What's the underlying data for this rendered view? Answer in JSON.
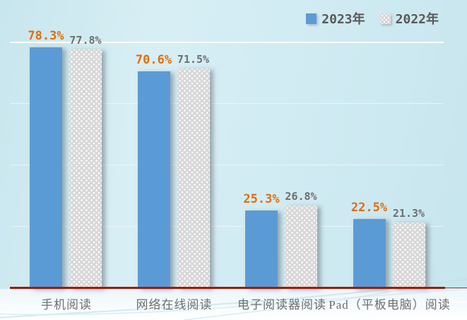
{
  "legend": {
    "items": [
      {
        "label": "2023年",
        "swatch": "solid-blue-square"
      },
      {
        "label": "2022年",
        "swatch": "white-polka-dot-square"
      }
    ]
  },
  "colors": {
    "background_top": "#cfeaf2",
    "background_bottom": "#f7fcfe",
    "series_2023": "#5b9bd5",
    "series_2022": "#d8d8d8",
    "value_label_2023": "#e36c0a",
    "value_label_2022": "#6f6f6f",
    "category_label": "#6e6e6e",
    "legend_text": "#595959",
    "axis_line": "#a81605",
    "gridline": "#ffffff"
  },
  "chart_data": {
    "type": "bar",
    "title": "",
    "categories": [
      "手机阅读",
      "网络在线阅读",
      "电子阅读器阅读",
      "Pad（平板电脑）阅读"
    ],
    "series": [
      {
        "name": "2023年",
        "values": [
          78.3,
          70.6,
          25.3,
          22.5
        ],
        "labels": [
          "78.3%",
          "70.6%",
          "25.3%",
          "22.5%"
        ],
        "color": "#5b9bd5",
        "label_color": "#e36c0a",
        "pattern": "solid"
      },
      {
        "name": "2022年",
        "values": [
          77.8,
          71.5,
          26.8,
          21.3
        ],
        "labels": [
          "77.8%",
          "71.5%",
          "26.8%",
          "21.3%"
        ],
        "color": "#d8d8d8",
        "label_color": "#6f6f6f",
        "pattern": "white-polka-dots"
      }
    ],
    "xlabel": "",
    "ylabel": "",
    "ylim": [
      0,
      80
    ],
    "gridline_values": [
      20,
      40,
      60,
      80
    ],
    "gridlines_visible": true,
    "y_axis_ticks_visible": false,
    "legend_position": "top-right",
    "value_label_format": "percent"
  }
}
